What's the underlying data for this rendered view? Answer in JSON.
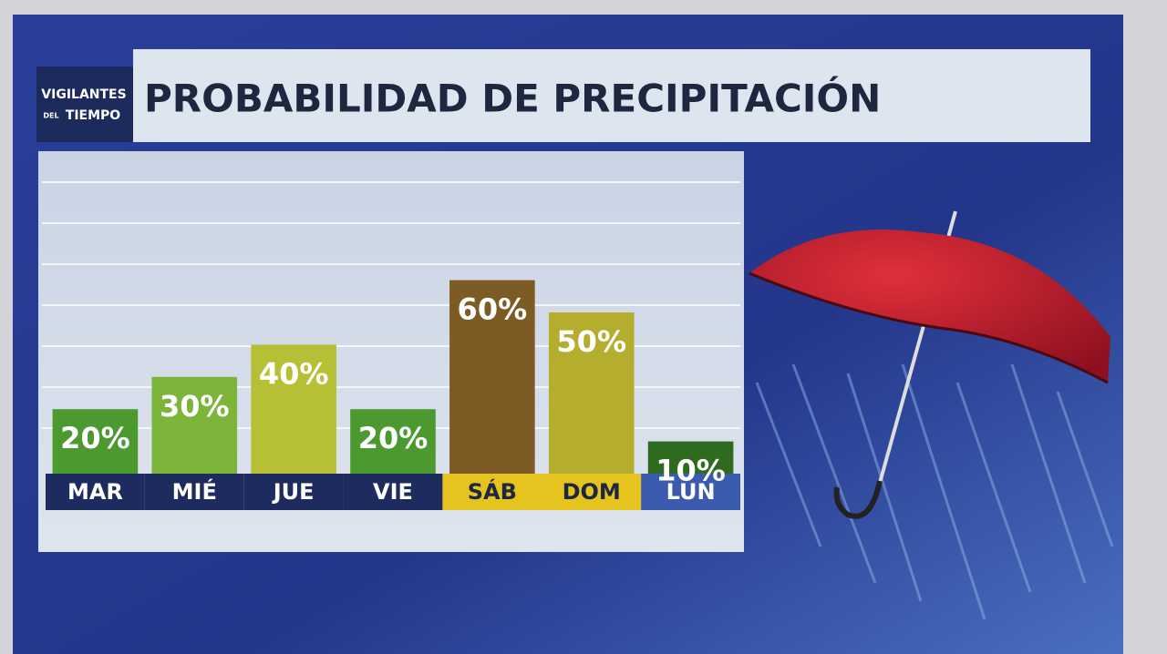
{
  "logo": [
    "VIGILANTES",
    "DEL",
    "TIEMPO"
  ],
  "chart_data": {
    "type": "bar",
    "title": "PROBABILIDAD DE PRECIPITACIÓN",
    "categories": [
      "MAR",
      "MIÉ",
      "JUE",
      "VIE",
      "SÁB",
      "DOM",
      "LUN"
    ],
    "values": [
      20,
      30,
      40,
      20,
      60,
      50,
      10
    ],
    "value_labels": [
      "20%",
      "30%",
      "40%",
      "20%",
      "60%",
      "50%",
      "10%"
    ],
    "colors": [
      "#4c9a2f",
      "#7cb53a",
      "#b7bf35",
      "#4c9a2f",
      "#7d5b24",
      "#b5ad2d",
      "#2f6b1f"
    ],
    "label_colors": [
      "#1d2b5e",
      "#1d2b5e",
      "#1d2b5e",
      "#1d2b5e",
      "#e6c41f",
      "#e6c41f",
      "#3b5cae"
    ],
    "ylim": [
      0,
      100
    ]
  }
}
